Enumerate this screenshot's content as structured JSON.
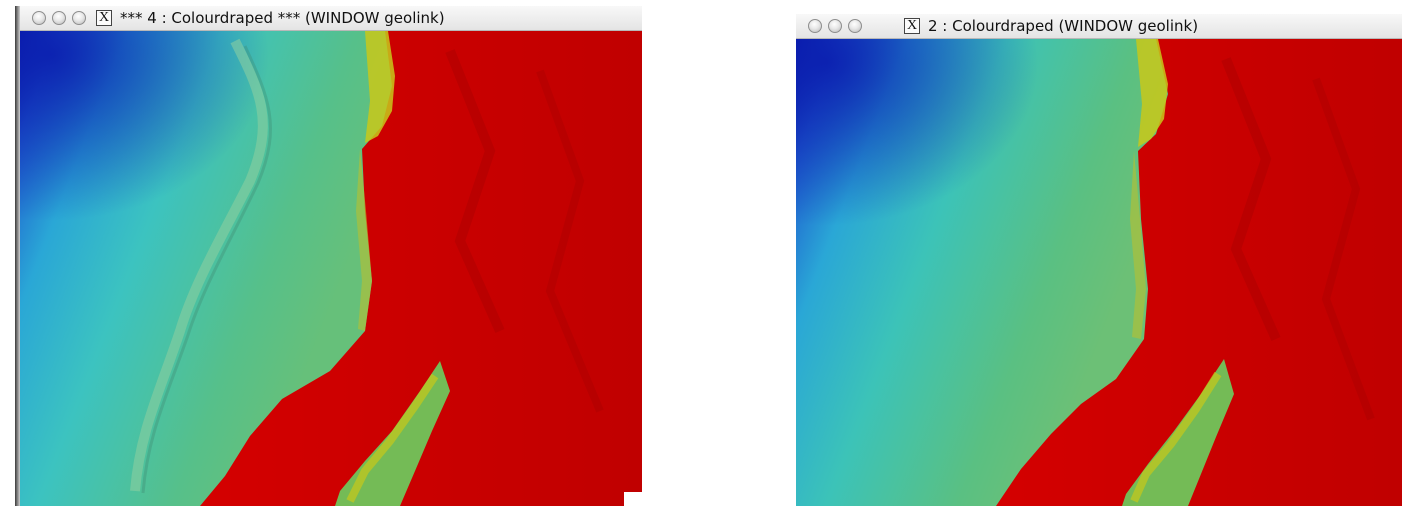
{
  "windows": [
    {
      "title": "*** 4 : Colourdraped *** (WINDOW geolink)",
      "close_glyph": "X",
      "buttons": [
        "close-traffic-icon",
        "minimize-traffic-icon",
        "zoom-traffic-icon"
      ]
    },
    {
      "title": "2 : Colourdraped (WINDOW geolink)",
      "close_glyph": "X",
      "buttons": [
        "close-traffic-icon",
        "minimize-traffic-icon",
        "zoom-traffic-icon"
      ]
    }
  ],
  "colors": {
    "deep": "#0a1cae",
    "mid_blue": "#2a9fd4",
    "cyan": "#34c4c8",
    "green": "#58c084",
    "yellow": "#c8c81a",
    "red": "#cc0000"
  }
}
